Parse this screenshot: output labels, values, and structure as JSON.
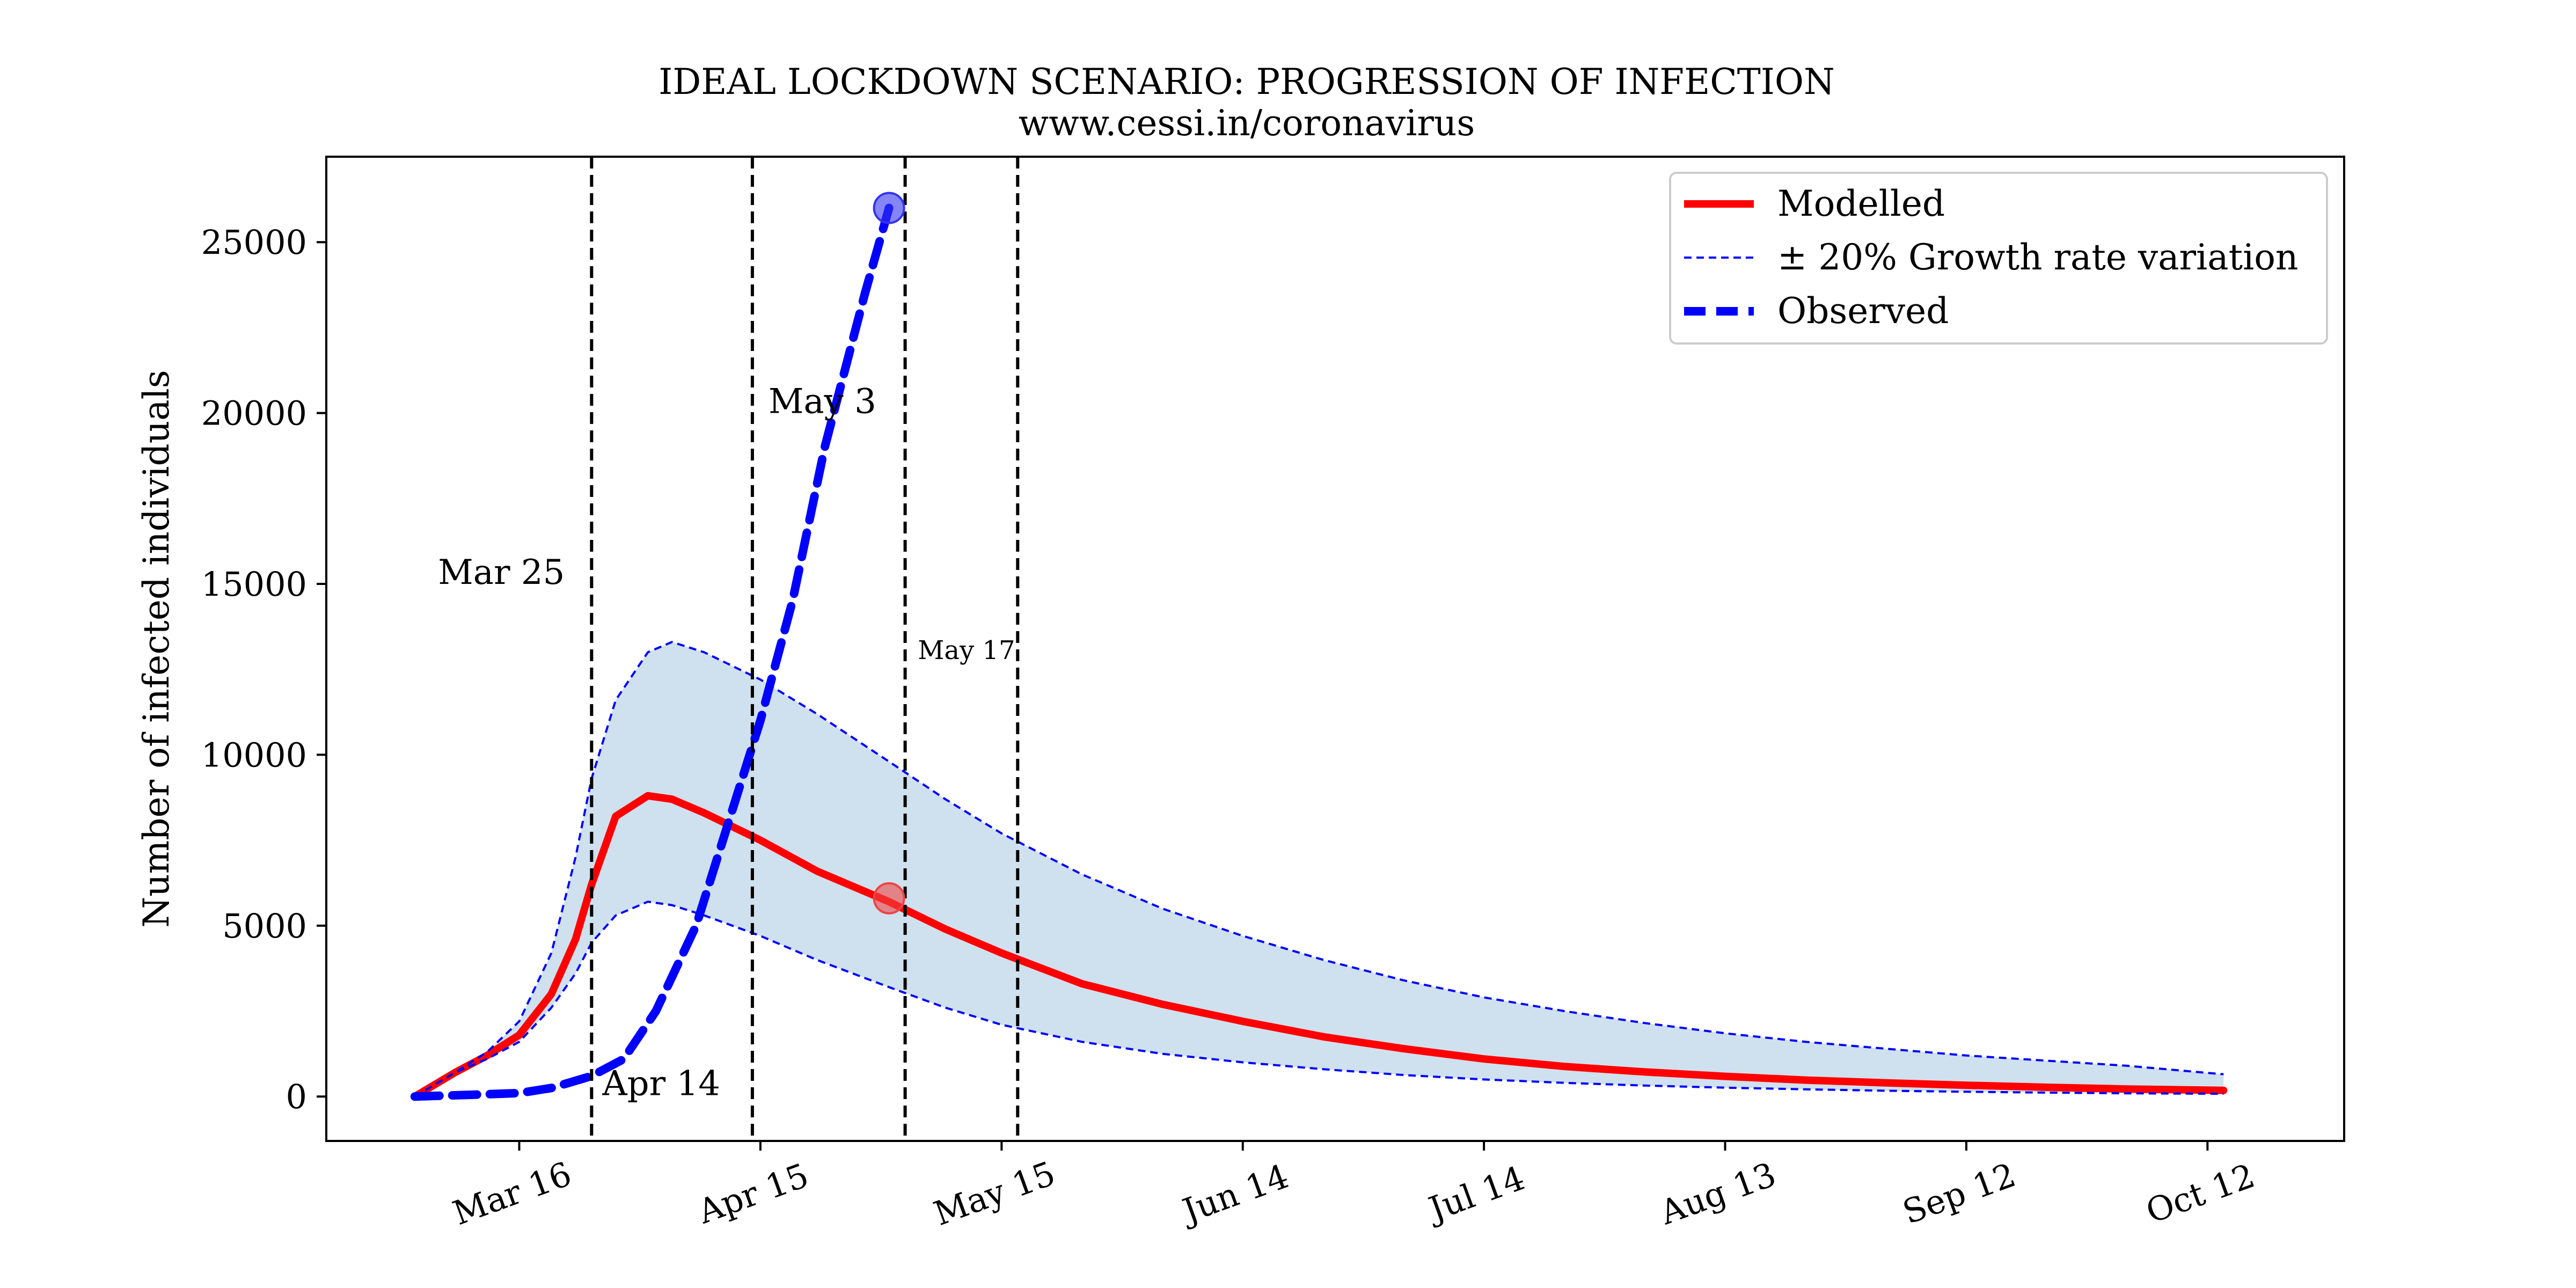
{
  "chart_data": {
    "type": "line",
    "title": "IDEAL LOCKDOWN SCENARIO: PROGRESSION OF INFECTION",
    "subtitle": "www.cessi.in/coronavirus",
    "xlabel": "",
    "ylabel": "Number of infected individuals",
    "x_axis": "date (2020)",
    "xlim": [
      "2020-02-21",
      "2020-10-29"
    ],
    "ylim": [
      -1300,
      27500
    ],
    "x_ticks": [
      {
        "date": "2020-03-16",
        "label": "Mar 16"
      },
      {
        "date": "2020-04-15",
        "label": "Apr 15"
      },
      {
        "date": "2020-05-15",
        "label": "May 15"
      },
      {
        "date": "2020-06-14",
        "label": "Jun 14"
      },
      {
        "date": "2020-07-14",
        "label": "Jul 14"
      },
      {
        "date": "2020-08-13",
        "label": "Aug 13"
      },
      {
        "date": "2020-09-12",
        "label": "Sep 12"
      },
      {
        "date": "2020-10-12",
        "label": "Oct 12"
      }
    ],
    "y_ticks": [
      0,
      5000,
      10000,
      15000,
      20000,
      25000
    ],
    "grid": false,
    "legend_position": "top-right",
    "series": [
      {
        "name": "Modelled",
        "style": "solid-thick",
        "color": "#ff0000",
        "points": [
          [
            "2020-03-03",
            0
          ],
          [
            "2020-03-08",
            700
          ],
          [
            "2020-03-12",
            1200
          ],
          [
            "2020-03-16",
            1800
          ],
          [
            "2020-03-20",
            3000
          ],
          [
            "2020-03-23",
            4600
          ],
          [
            "2020-03-25",
            6200
          ],
          [
            "2020-03-28",
            8200
          ],
          [
            "2020-04-01",
            8800
          ],
          [
            "2020-04-04",
            8700
          ],
          [
            "2020-04-08",
            8300
          ],
          [
            "2020-04-15",
            7500
          ],
          [
            "2020-04-22",
            6600
          ],
          [
            "2020-05-01",
            5700
          ],
          [
            "2020-05-08",
            4900
          ],
          [
            "2020-05-15",
            4200
          ],
          [
            "2020-05-25",
            3300
          ],
          [
            "2020-06-04",
            2700
          ],
          [
            "2020-06-14",
            2200
          ],
          [
            "2020-06-24",
            1750
          ],
          [
            "2020-07-04",
            1400
          ],
          [
            "2020-07-14",
            1100
          ],
          [
            "2020-07-24",
            880
          ],
          [
            "2020-08-03",
            720
          ],
          [
            "2020-08-13",
            590
          ],
          [
            "2020-08-23",
            480
          ],
          [
            "2020-09-02",
            400
          ],
          [
            "2020-09-12",
            330
          ],
          [
            "2020-09-22",
            270
          ],
          [
            "2020-10-02",
            220
          ],
          [
            "2020-10-14",
            180
          ]
        ]
      },
      {
        "name": "± 20% Growth rate variation",
        "style": "dashed-thin",
        "color": "#0000ff",
        "bands": {
          "upper": [
            [
              "2020-03-03",
              0
            ],
            [
              "2020-03-08",
              700
            ],
            [
              "2020-03-12",
              1300
            ],
            [
              "2020-03-16",
              2200
            ],
            [
              "2020-03-20",
              4200
            ],
            [
              "2020-03-23",
              7000
            ],
            [
              "2020-03-25",
              9300
            ],
            [
              "2020-03-28",
              11600
            ],
            [
              "2020-04-01",
              13000
            ],
            [
              "2020-04-04",
              13300
            ],
            [
              "2020-04-08",
              13000
            ],
            [
              "2020-04-15",
              12200
            ],
            [
              "2020-04-22",
              11200
            ],
            [
              "2020-05-01",
              9800
            ],
            [
              "2020-05-08",
              8700
            ],
            [
              "2020-05-15",
              7700
            ],
            [
              "2020-05-25",
              6500
            ],
            [
              "2020-06-04",
              5500
            ],
            [
              "2020-06-14",
              4700
            ],
            [
              "2020-06-24",
              4000
            ],
            [
              "2020-07-04",
              3400
            ],
            [
              "2020-07-14",
              2900
            ],
            [
              "2020-07-24",
              2500
            ],
            [
              "2020-08-03",
              2150
            ],
            [
              "2020-08-13",
              1850
            ],
            [
              "2020-08-23",
              1600
            ],
            [
              "2020-09-02",
              1400
            ],
            [
              "2020-09-12",
              1200
            ],
            [
              "2020-09-22",
              1050
            ],
            [
              "2020-10-02",
              900
            ],
            [
              "2020-10-14",
              650
            ]
          ],
          "lower": [
            [
              "2020-03-03",
              0
            ],
            [
              "2020-03-08",
              700
            ],
            [
              "2020-03-12",
              1100
            ],
            [
              "2020-03-16",
              1600
            ],
            [
              "2020-03-20",
              2600
            ],
            [
              "2020-03-23",
              3600
            ],
            [
              "2020-03-25",
              4500
            ],
            [
              "2020-03-28",
              5300
            ],
            [
              "2020-04-01",
              5700
            ],
            [
              "2020-04-04",
              5600
            ],
            [
              "2020-04-08",
              5300
            ],
            [
              "2020-04-15",
              4700
            ],
            [
              "2020-04-22",
              4000
            ],
            [
              "2020-05-01",
              3200
            ],
            [
              "2020-05-08",
              2600
            ],
            [
              "2020-05-15",
              2100
            ],
            [
              "2020-05-25",
              1600
            ],
            [
              "2020-06-04",
              1250
            ],
            [
              "2020-06-14",
              1000
            ],
            [
              "2020-06-24",
              800
            ],
            [
              "2020-07-04",
              630
            ],
            [
              "2020-07-14",
              500
            ],
            [
              "2020-07-24",
              400
            ],
            [
              "2020-08-03",
              320
            ],
            [
              "2020-08-13",
              260
            ],
            [
              "2020-08-23",
              210
            ],
            [
              "2020-09-02",
              170
            ],
            [
              "2020-09-12",
              140
            ],
            [
              "2020-09-22",
              115
            ],
            [
              "2020-10-02",
              95
            ],
            [
              "2020-10-14",
              80
            ]
          ]
        }
      },
      {
        "name": "Observed",
        "style": "dashed-thick",
        "color": "#0000ff",
        "points": [
          [
            "2020-03-03",
            0
          ],
          [
            "2020-03-10",
            50
          ],
          [
            "2020-03-16",
            100
          ],
          [
            "2020-03-20",
            250
          ],
          [
            "2020-03-25",
            600
          ],
          [
            "2020-03-29",
            1100
          ],
          [
            "2020-04-02",
            2500
          ],
          [
            "2020-04-07",
            5000
          ],
          [
            "2020-04-11",
            8000
          ],
          [
            "2020-04-15",
            11000
          ],
          [
            "2020-04-19",
            14500
          ],
          [
            "2020-04-23",
            19000
          ],
          [
            "2020-04-28",
            23500
          ],
          [
            "2020-05-01",
            26000
          ]
        ]
      }
    ],
    "markers": [
      {
        "date": "2020-05-01",
        "value": 26000,
        "color": "#3333ee"
      },
      {
        "date": "2020-05-01",
        "value": 5800,
        "color": "#ee4444"
      }
    ],
    "vlines": [
      {
        "date": "2020-03-25",
        "label": "Mar 25",
        "label_y": 15000,
        "label_side": "left",
        "size": "large"
      },
      {
        "date": "2020-04-14",
        "label": "Apr 14",
        "label_y": 200,
        "label_side": "left-below",
        "size": "large"
      },
      {
        "date": "2020-05-03",
        "label": "May 3",
        "label_y": 20000,
        "label_side": "left-over",
        "size": "large"
      },
      {
        "date": "2020-05-17",
        "label": "May 17",
        "label_y": 12800,
        "label_side": "left-inside",
        "size": "small"
      }
    ],
    "band_fill_color": "#cfe0ee"
  }
}
